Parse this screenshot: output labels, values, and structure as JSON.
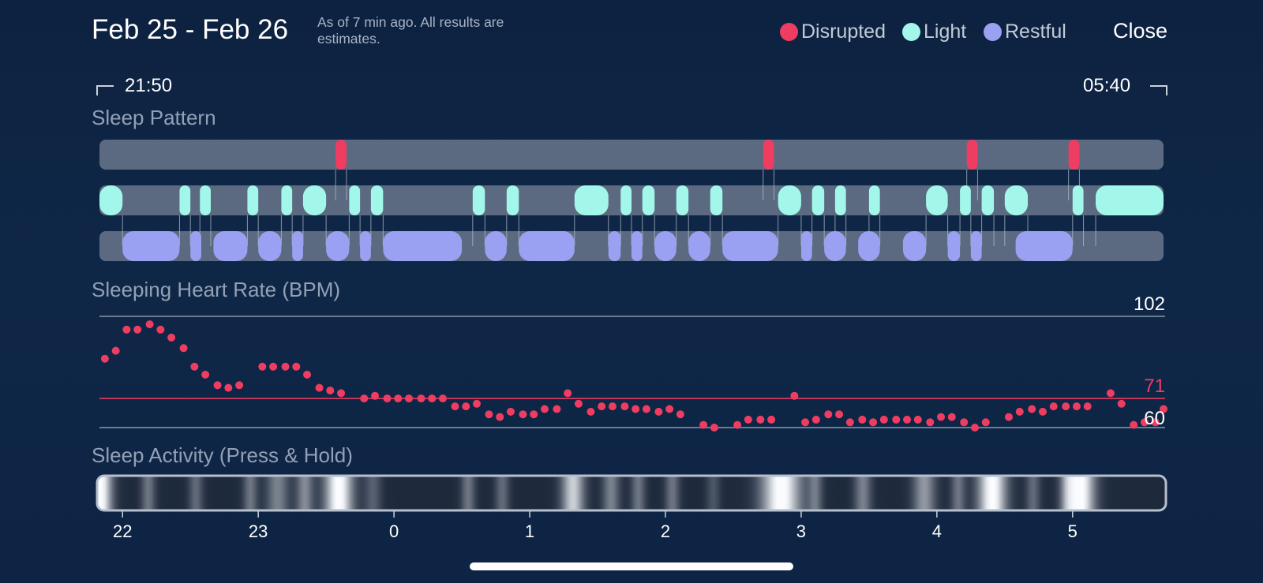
{
  "header": {
    "date_range": "Feb 25 - Feb 26",
    "as_of": "As of 7 min ago. All results are estimates.",
    "close_label": "Close"
  },
  "legend": [
    {
      "label": "Disrupted",
      "color": "#ef3d62"
    },
    {
      "label": "Light",
      "color": "#a3f7ea"
    },
    {
      "label": "Restful",
      "color": "#9aa1f2"
    }
  ],
  "time_range": {
    "start": "21:50",
    "end": "05:40"
  },
  "sections": {
    "sleep_pattern": "Sleep Pattern",
    "heart_rate": "Sleeping Heart Rate (BPM)",
    "activity": "Sleep Activity (Press & Hold)"
  },
  "colors": {
    "disrupted": "#ef3d62",
    "light": "#a3f7ea",
    "restful": "#9aa1f2",
    "track": "#5b6a80"
  },
  "chart_data": {
    "type": "scatter",
    "x_unit": "hours",
    "x_range": [
      21.83,
      29.67
    ],
    "sleep_pattern": {
      "disrupted": [
        [
          23.57,
          23.65
        ],
        [
          26.72,
          26.8
        ],
        [
          28.22,
          28.3
        ],
        [
          28.97,
          29.05
        ]
      ],
      "light": [
        [
          21.83,
          22.0
        ],
        [
          22.42,
          22.5
        ],
        [
          22.57,
          22.65
        ],
        [
          22.92,
          23.0
        ],
        [
          23.17,
          23.25
        ],
        [
          23.33,
          23.5
        ],
        [
          23.67,
          23.75
        ],
        [
          23.83,
          23.92
        ],
        [
          24.58,
          24.67
        ],
        [
          24.83,
          24.92
        ],
        [
          25.33,
          25.58
        ],
        [
          25.67,
          25.75
        ],
        [
          25.83,
          25.92
        ],
        [
          26.08,
          26.17
        ],
        [
          26.33,
          26.42
        ],
        [
          26.83,
          27.0
        ],
        [
          27.08,
          27.17
        ],
        [
          27.25,
          27.33
        ],
        [
          27.5,
          27.58
        ],
        [
          27.92,
          28.08
        ],
        [
          28.17,
          28.25
        ],
        [
          28.33,
          28.42
        ],
        [
          28.5,
          28.67
        ],
        [
          29.0,
          29.08
        ],
        [
          29.17,
          29.67
        ]
      ],
      "restful": [
        [
          22.0,
          22.42
        ],
        [
          22.5,
          22.58
        ],
        [
          22.67,
          22.92
        ],
        [
          23.0,
          23.17
        ],
        [
          23.25,
          23.33
        ],
        [
          23.5,
          23.67
        ],
        [
          23.75,
          23.83
        ],
        [
          23.92,
          24.5
        ],
        [
          24.67,
          24.83
        ],
        [
          24.92,
          25.33
        ],
        [
          25.58,
          25.67
        ],
        [
          25.75,
          25.83
        ],
        [
          25.92,
          26.08
        ],
        [
          26.17,
          26.33
        ],
        [
          26.42,
          26.83
        ],
        [
          27.0,
          27.08
        ],
        [
          27.17,
          27.33
        ],
        [
          27.42,
          27.58
        ],
        [
          27.75,
          27.92
        ],
        [
          28.08,
          28.17
        ],
        [
          28.25,
          28.33
        ],
        [
          28.58,
          29.0
        ]
      ]
    },
    "heart_rate": {
      "ylabel": "Sleeping Heart Rate (BPM)",
      "ymax": 102,
      "avg": 71,
      "ymin": 60,
      "points": [
        [
          21.87,
          86
        ],
        [
          21.95,
          89
        ],
        [
          22.03,
          97
        ],
        [
          22.11,
          97
        ],
        [
          22.2,
          99
        ],
        [
          22.28,
          97
        ],
        [
          22.36,
          94
        ],
        [
          22.45,
          90
        ],
        [
          22.53,
          83
        ],
        [
          22.61,
          80
        ],
        [
          22.7,
          76
        ],
        [
          22.78,
          75
        ],
        [
          22.86,
          76
        ],
        [
          23.03,
          83
        ],
        [
          23.11,
          83
        ],
        [
          23.2,
          83
        ],
        [
          23.28,
          83
        ],
        [
          23.36,
          80
        ],
        [
          23.45,
          75
        ],
        [
          23.53,
          74
        ],
        [
          23.61,
          73
        ],
        [
          23.78,
          71
        ],
        [
          23.86,
          72
        ],
        [
          23.95,
          71
        ],
        [
          24.03,
          71
        ],
        [
          24.11,
          71
        ],
        [
          24.2,
          71
        ],
        [
          24.28,
          71
        ],
        [
          24.36,
          71
        ],
        [
          24.45,
          68
        ],
        [
          24.53,
          68
        ],
        [
          24.61,
          69
        ],
        [
          24.7,
          65
        ],
        [
          24.78,
          64
        ],
        [
          24.86,
          66
        ],
        [
          24.95,
          65
        ],
        [
          25.03,
          65
        ],
        [
          25.11,
          67
        ],
        [
          25.2,
          67
        ],
        [
          25.28,
          73
        ],
        [
          25.36,
          69
        ],
        [
          25.45,
          66
        ],
        [
          25.53,
          68
        ],
        [
          25.61,
          68
        ],
        [
          25.7,
          68
        ],
        [
          25.78,
          67
        ],
        [
          25.86,
          67
        ],
        [
          25.95,
          66
        ],
        [
          26.03,
          67
        ],
        [
          26.11,
          65
        ],
        [
          26.28,
          61
        ],
        [
          26.36,
          60
        ],
        [
          26.53,
          61
        ],
        [
          26.61,
          63
        ],
        [
          26.7,
          63
        ],
        [
          26.78,
          63
        ],
        [
          26.95,
          72
        ],
        [
          27.03,
          62
        ],
        [
          27.11,
          63
        ],
        [
          27.2,
          65
        ],
        [
          27.28,
          65
        ],
        [
          27.36,
          62
        ],
        [
          27.45,
          63
        ],
        [
          27.53,
          62
        ],
        [
          27.61,
          63
        ],
        [
          27.7,
          63
        ],
        [
          27.78,
          63
        ],
        [
          27.86,
          63
        ],
        [
          27.95,
          62
        ],
        [
          28.03,
          64
        ],
        [
          28.11,
          64
        ],
        [
          28.2,
          62
        ],
        [
          28.28,
          60
        ],
        [
          28.36,
          62
        ],
        [
          28.53,
          64
        ],
        [
          28.61,
          66
        ],
        [
          28.7,
          67
        ],
        [
          28.78,
          66
        ],
        [
          28.86,
          68
        ],
        [
          28.95,
          68
        ],
        [
          29.03,
          68
        ],
        [
          29.11,
          68
        ],
        [
          29.28,
          73
        ],
        [
          29.36,
          69
        ],
        [
          29.45,
          61
        ],
        [
          29.53,
          62
        ],
        [
          29.61,
          62
        ],
        [
          29.67,
          67
        ]
      ]
    },
    "activity": {
      "ticks": [
        "22",
        "23",
        "0",
        "1",
        "2",
        "3",
        "4",
        "5"
      ],
      "tick_hours": [
        22,
        23,
        24,
        25,
        26,
        27,
        28,
        29
      ],
      "bursts": [
        [
          21.85,
          1.0,
          0.08
        ],
        [
          22.2,
          0.35,
          0.05
        ],
        [
          22.55,
          0.3,
          0.05
        ],
        [
          22.95,
          0.35,
          0.05
        ],
        [
          23.15,
          0.4,
          0.08
        ],
        [
          23.35,
          0.45,
          0.06
        ],
        [
          23.6,
          1.0,
          0.1
        ],
        [
          23.85,
          0.25,
          0.06
        ],
        [
          24.55,
          0.35,
          0.05
        ],
        [
          24.8,
          0.3,
          0.05
        ],
        [
          25.32,
          0.75,
          0.08
        ],
        [
          25.6,
          0.4,
          0.06
        ],
        [
          25.8,
          0.35,
          0.05
        ],
        [
          26.05,
          0.35,
          0.05
        ],
        [
          26.35,
          0.2,
          0.05
        ],
        [
          26.85,
          1.0,
          0.14
        ],
        [
          27.1,
          0.35,
          0.05
        ],
        [
          27.45,
          0.4,
          0.06
        ],
        [
          27.9,
          0.5,
          0.08
        ],
        [
          28.15,
          0.35,
          0.05
        ],
        [
          28.4,
          1.0,
          0.1
        ],
        [
          28.7,
          0.3,
          0.05
        ],
        [
          28.95,
          0.4,
          0.05
        ],
        [
          29.05,
          1.0,
          0.1
        ]
      ]
    }
  }
}
